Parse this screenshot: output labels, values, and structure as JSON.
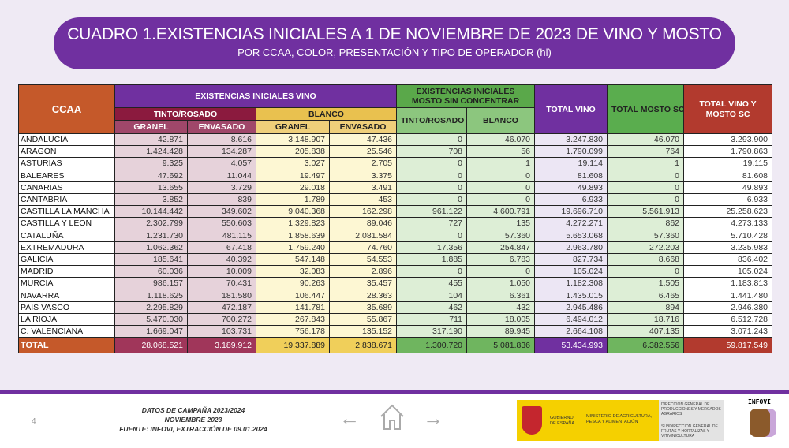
{
  "banner": {
    "title": "CUADRO 1.EXISTENCIAS INICIALES A 1 DE NOVIEMBRE DE 2023 DE VINO Y MOSTO",
    "subtitle": "POR CCAA, COLOR, PRESENTACIÓN Y TIPO DE OPERADOR (hl)"
  },
  "table": {
    "headers": {
      "ccaa": "CCAA",
      "vino": "EXISTENCIAS INICIALES VINO",
      "tinto": "TINTO/ROSADO",
      "blanco": "BLANCO",
      "granel": "GRANEL",
      "envasado": "ENVASADO",
      "mosto": "EXISTENCIAS INICIALES MOSTO SIN CONCENTRAR",
      "mosto_tinto": "TINTO/ROSADO",
      "mosto_blanco": "BLANCO",
      "total_vino": "TOTAL VINO",
      "total_mosto": "TOTAL MOSTO SC",
      "total": "TOTAL VINO Y MOSTO SC"
    },
    "rows": [
      [
        "ANDALUCIA",
        "42.871",
        "8.616",
        "3.148.907",
        "47.436",
        "0",
        "46.070",
        "3.247.830",
        "46.070",
        "3.293.900"
      ],
      [
        "ARAGON",
        "1.424.428",
        "134.287",
        "205.838",
        "25.546",
        "708",
        "56",
        "1.790.099",
        "764",
        "1.790.863"
      ],
      [
        "ASTURIAS",
        "9.325",
        "4.057",
        "3.027",
        "2.705",
        "0",
        "1",
        "19.114",
        "1",
        "19.115"
      ],
      [
        "BALEARES",
        "47.692",
        "11.044",
        "19.497",
        "3.375",
        "0",
        "0",
        "81.608",
        "0",
        "81.608"
      ],
      [
        "CANARIAS",
        "13.655",
        "3.729",
        "29.018",
        "3.491",
        "0",
        "0",
        "49.893",
        "0",
        "49.893"
      ],
      [
        "CANTABRIA",
        "3.852",
        "839",
        "1.789",
        "453",
        "0",
        "0",
        "6.933",
        "0",
        "6.933"
      ],
      [
        "CASTILLA LA MANCHA",
        "10.144.442",
        "349.602",
        "9.040.368",
        "162.298",
        "961.122",
        "4.600.791",
        "19.696.710",
        "5.561.913",
        "25.258.623"
      ],
      [
        "CASTILLA Y LEON",
        "2.302.799",
        "550.603",
        "1.329.823",
        "89.046",
        "727",
        "135",
        "4.272.271",
        "862",
        "4.273.133"
      ],
      [
        "CATALUÑA",
        "1.231.730",
        "481.115",
        "1.858.639",
        "2.081.584",
        "0",
        "57.360",
        "5.653.068",
        "57.360",
        "5.710.428"
      ],
      [
        "EXTREMADURA",
        "1.062.362",
        "67.418",
        "1.759.240",
        "74.760",
        "17.356",
        "254.847",
        "2.963.780",
        "272.203",
        "3.235.983"
      ],
      [
        "GALICIA",
        "185.641",
        "40.392",
        "547.148",
        "54.553",
        "1.885",
        "6.783",
        "827.734",
        "8.668",
        "836.402"
      ],
      [
        "MADRID",
        "60.036",
        "10.009",
        "32.083",
        "2.896",
        "0",
        "0",
        "105.024",
        "0",
        "105.024"
      ],
      [
        "MURCIA",
        "986.157",
        "70.431",
        "90.263",
        "35.457",
        "455",
        "1.050",
        "1.182.308",
        "1.505",
        "1.183.813"
      ],
      [
        "NAVARRA",
        "1.118.625",
        "181.580",
        "106.447",
        "28.363",
        "104",
        "6.361",
        "1.435.015",
        "6.465",
        "1.441.480"
      ],
      [
        "PAIS VASCO",
        "2.295.829",
        "472.187",
        "141.781",
        "35.689",
        "462",
        "432",
        "2.945.486",
        "894",
        "2.946.380"
      ],
      [
        "LA RIOJA",
        "5.470.030",
        "700.272",
        "267.843",
        "55.867",
        "711",
        "18.005",
        "6.494.012",
        "18.716",
        "6.512.728"
      ],
      [
        "C. VALENCIANA",
        "1.669.047",
        "103.731",
        "756.178",
        "135.152",
        "317.190",
        "89.945",
        "2.664.108",
        "407.135",
        "3.071.243"
      ]
    ],
    "total": [
      "TOTAL",
      "28.068.521",
      "3.189.912",
      "19.337.889",
      "2.838.671",
      "1.300.720",
      "5.081.836",
      "53.434.993",
      "6.382.556",
      "59.817.549"
    ]
  },
  "footer": {
    "page": "4",
    "source": [
      "DATOS DE CAMPAÑA 2023/2024",
      "NOVIEMBRE 2023",
      "FUENTE: INFOVI, EXTRACCIÓN DE 09.01.2024"
    ],
    "gov": "GOBIERNO DE ESPAÑA",
    "ministry": "MINISTERIO DE AGRICULTURA, PESCA Y ALIMENTACIÓN",
    "dg": "DIRECCIÓN GENERAL DE PRODUCCIONES Y MERCADOS AGRARIOS",
    "sub": "SUBDIRECCIÓN GENERAL DE FRUTAS Y HORTALIZAS Y VITIVINICULTURA",
    "logo": "INFOVI"
  },
  "icons": {
    "prev": "arrow-left-icon",
    "home": "home-icon",
    "next": "arrow-right-icon"
  },
  "colors": {
    "accent": "#7030a0",
    "ccaa": "#c5592a",
    "tinto": "#8b1a3e",
    "blanco": "#e9c14f",
    "mosto": "#5aa84a",
    "total": "#b23a2e"
  }
}
